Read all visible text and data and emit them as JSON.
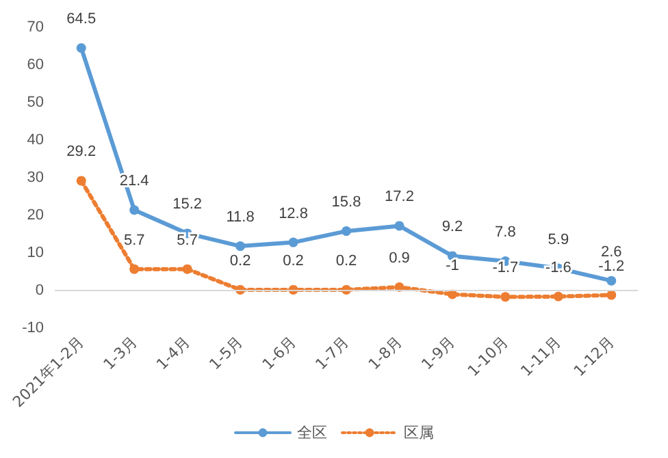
{
  "chart_data": {
    "type": "line",
    "categories": [
      "2021年1-2月",
      "1-3月",
      "1-4月",
      "1-5月",
      "1-6月",
      "1-7月",
      "1-8月",
      "1-9月",
      "1-10月",
      "1-11月",
      "1-12月"
    ],
    "series": [
      {
        "name": "全区",
        "color": "#5b9bd5",
        "line_style": "solid",
        "values": [
          64.5,
          21.4,
          15.2,
          11.8,
          12.8,
          15.8,
          17.2,
          9.2,
          7.8,
          5.9,
          2.6
        ]
      },
      {
        "name": "区属",
        "color": "#ed7d31",
        "line_style": "dotted",
        "values": [
          29.2,
          5.7,
          5.7,
          0.2,
          0.2,
          0.2,
          0.9,
          -1,
          -1.7,
          -1.6,
          -1.2
        ]
      }
    ],
    "ylim": [
      -10,
      70
    ],
    "yticks": [
      -10,
      0,
      10,
      20,
      30,
      40,
      50,
      60,
      70
    ],
    "legend": "bottom",
    "marker": "circle",
    "data_labels": true
  }
}
